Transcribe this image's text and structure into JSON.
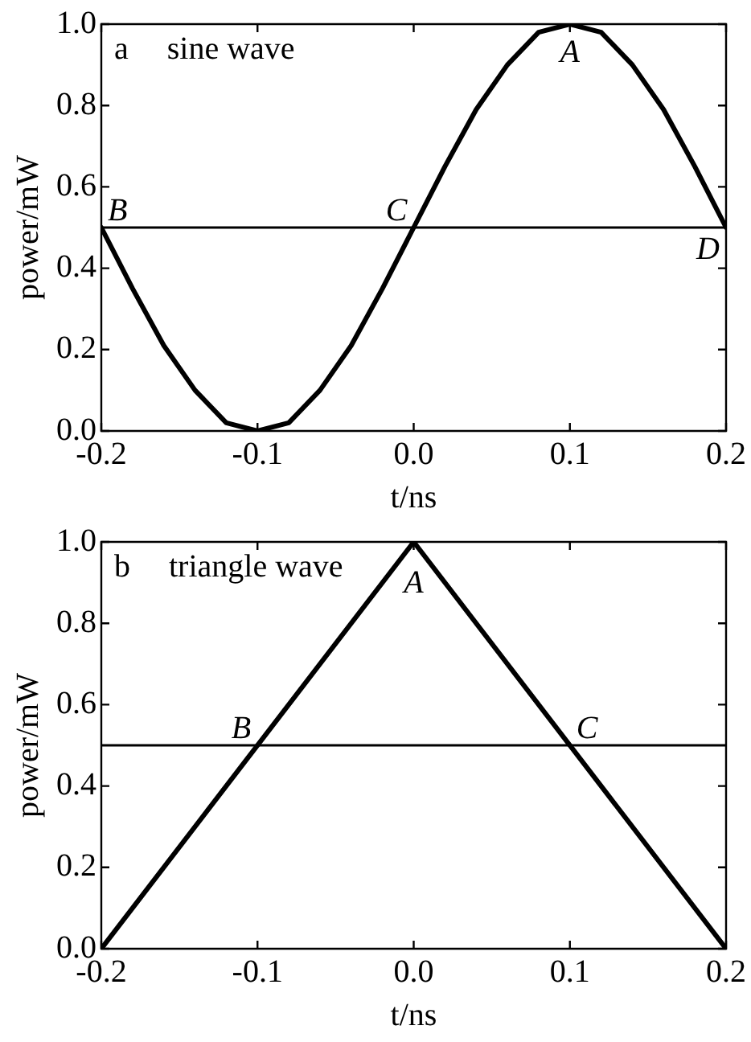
{
  "chart_data": [
    {
      "type": "line",
      "title": "sine wave",
      "xlabel": "t/ns",
      "ylabel": "power/mW",
      "x": [
        -0.2,
        -0.18,
        -0.16,
        -0.14,
        -0.12,
        -0.1,
        -0.08,
        -0.06,
        -0.04,
        -0.02,
        0,
        0.02,
        0.04,
        0.06,
        0.08,
        0.1,
        0.12,
        0.14,
        0.16,
        0.18,
        0.2
      ],
      "series": [
        {
          "color": "#000000",
          "values": [
            0.5,
            0.35,
            0.21,
            0.1,
            0.02,
            0,
            0.02,
            0.1,
            0.21,
            0.35,
            0.5,
            0.65,
            0.79,
            0.9,
            0.98,
            1,
            0.98,
            0.9,
            0.79,
            0.65,
            0.5
          ]
        }
      ],
      "xlim": [
        -0.2,
        0.2
      ],
      "xticks": [
        {
          "value": -0.2,
          "label": "-0.2"
        },
        {
          "value": -0.1,
          "label": "-0.1"
        },
        {
          "value": 0,
          "label": "0.0"
        },
        {
          "value": 0.1,
          "label": "0.1"
        },
        {
          "value": 0.2,
          "label": "0.2"
        }
      ],
      "ylim": [
        0,
        1
      ],
      "yticks": [
        {
          "value": 0,
          "label": "0.0"
        },
        {
          "value": 0.2,
          "label": "0.2"
        },
        {
          "value": 0.4,
          "label": "0.4"
        },
        {
          "value": 0.6,
          "label": "0.6"
        },
        {
          "value": 0.8,
          "label": "0.8"
        },
        {
          "value": 1,
          "label": "1.0"
        }
      ],
      "ref_lines": [
        {
          "axis": "y",
          "value": 0.5,
          "color": "#000000"
        }
      ],
      "annotations": [
        "a",
        {
          "text": "A",
          "x": 0.1,
          "y": 1
        },
        {
          "text": "B",
          "x": -0.2,
          "y": 0.5
        },
        {
          "text": "C",
          "x": 0,
          "y": 0.5
        },
        {
          "text": "D",
          "x": 0.2,
          "y": 0.5
        }
      ],
      "grid": false,
      "legend": false,
      "marker": "none",
      "line_style": "solid"
    },
    {
      "type": "line",
      "title": "triangle wave",
      "xlabel": "t/ns",
      "ylabel": "power/mW",
      "x": [
        -0.2,
        0,
        0.2
      ],
      "series": [
        {
          "color": "#000000",
          "values": [
            0,
            1,
            0
          ]
        }
      ],
      "xlim": [
        -0.2,
        0.2
      ],
      "xticks": [
        {
          "value": -0.2,
          "label": "-0.2"
        },
        {
          "value": -0.1,
          "label": "-0.1"
        },
        {
          "value": 0,
          "label": "0.0"
        },
        {
          "value": 0.1,
          "label": "0.1"
        },
        {
          "value": 0.2,
          "label": "0.2"
        }
      ],
      "ylim": [
        0,
        1
      ],
      "yticks": [
        {
          "value": 0,
          "label": "0.0"
        },
        {
          "value": 0.2,
          "label": "0.2"
        },
        {
          "value": 0.4,
          "label": "0.4"
        },
        {
          "value": 0.6,
          "label": "0.6"
        },
        {
          "value": 0.8,
          "label": "0.8"
        },
        {
          "value": 1,
          "label": "1.0"
        }
      ],
      "ref_lines": [
        {
          "axis": "y",
          "value": 0.5,
          "color": "#000000"
        }
      ],
      "annotations": [
        "b",
        {
          "text": "A",
          "x": 0,
          "y": 1
        },
        {
          "text": "B",
          "x": -0.1,
          "y": 0.5
        },
        {
          "text": "C",
          "x": 0.1,
          "y": 0.5
        }
      ],
      "grid": false,
      "legend": false,
      "marker": "none",
      "line_style": "solid"
    }
  ]
}
